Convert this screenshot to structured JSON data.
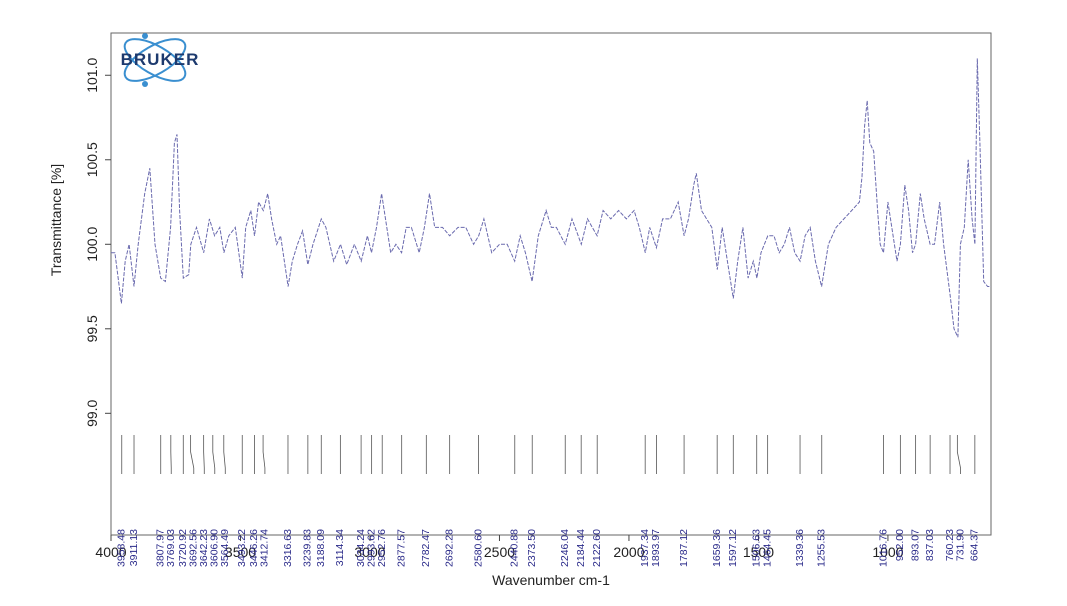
{
  "logo": "BRUKER",
  "chart_data": {
    "type": "line",
    "x_label": "Wavenumber cm-1",
    "y_label": "Transmittance [%]",
    "xlim": [
      4000,
      602
    ],
    "ylim": [
      98.28,
      101.25
    ],
    "xticks": [
      4000,
      3500,
      3000,
      2500,
      2000,
      1500,
      1000
    ],
    "yticks": [
      {
        "value": 101,
        "label": "101.0"
      },
      100.5,
      {
        "value": 100,
        "label": "100.0"
      },
      99.5,
      {
        "value": 99,
        "label": "99.0"
      }
    ],
    "color": "#6a6aae",
    "x": [
      4000,
      3985,
      3960,
      3945,
      3930,
      3911,
      3895,
      3870,
      3850,
      3830,
      3808,
      3790,
      3770,
      3755,
      3745,
      3735,
      3721,
      3700,
      3692,
      3670,
      3642,
      3620,
      3600,
      3580,
      3564,
      3545,
      3520,
      3493,
      3480,
      3460,
      3446,
      3430,
      3412,
      3395,
      3380,
      3360,
      3345,
      3316,
      3300,
      3280,
      3260,
      3240,
      3220,
      3188,
      3170,
      3140,
      3114,
      3090,
      3060,
      3034,
      3010,
      2994,
      2975,
      2955,
      2940,
      2920,
      2900,
      2878,
      2860,
      2840,
      2810,
      2790,
      2770,
      2750,
      2720,
      2692,
      2660,
      2630,
      2600,
      2580,
      2560,
      2530,
      2500,
      2470,
      2441,
      2420,
      2400,
      2374,
      2350,
      2320,
      2300,
      2280,
      2246,
      2220,
      2184,
      2160,
      2123,
      2100,
      2070,
      2040,
      2010,
      1980,
      1960,
      1937,
      1920,
      1894,
      1870,
      1840,
      1810,
      1787,
      1770,
      1750,
      1740,
      1720,
      1700,
      1680,
      1659,
      1640,
      1620,
      1597,
      1580,
      1560,
      1540,
      1520,
      1506,
      1490,
      1464,
      1440,
      1420,
      1400,
      1380,
      1360,
      1339,
      1320,
      1300,
      1280,
      1256,
      1230,
      1200,
      1170,
      1140,
      1110,
      1100,
      1090,
      1080,
      1070,
      1055,
      1040,
      1030,
      1017,
      1000,
      985,
      965,
      952,
      935,
      920,
      905,
      893,
      875,
      860,
      837,
      820,
      800,
      785,
      760,
      745,
      730,
      720,
      705,
      690,
      675,
      664,
      655,
      645,
      630,
      615,
      602
    ],
    "values": [
      99.95,
      99.95,
      99.65,
      99.9,
      100.0,
      99.75,
      100.0,
      100.3,
      100.45,
      100.0,
      99.8,
      99.78,
      100.1,
      100.6,
      100.65,
      100.2,
      99.8,
      99.82,
      100.0,
      100.1,
      99.95,
      100.15,
      100.05,
      100.1,
      99.95,
      100.05,
      100.1,
      99.8,
      100.1,
      100.2,
      100.05,
      100.25,
      100.2,
      100.3,
      100.15,
      100.0,
      100.05,
      99.75,
      99.9,
      100.0,
      100.08,
      99.88,
      100.0,
      100.15,
      100.1,
      99.9,
      100.0,
      99.88,
      100.0,
      99.9,
      100.05,
      99.95,
      100.1,
      100.3,
      100.15,
      99.95,
      100.0,
      99.95,
      100.1,
      100.1,
      99.95,
      100.1,
      100.3,
      100.1,
      100.1,
      100.05,
      100.1,
      100.1,
      100.0,
      100.05,
      100.15,
      99.95,
      100.0,
      100.0,
      99.9,
      100.05,
      99.95,
      99.78,
      100.05,
      100.2,
      100.1,
      100.1,
      100.0,
      100.15,
      100.0,
      100.15,
      100.05,
      100.2,
      100.15,
      100.2,
      100.15,
      100.2,
      100.1,
      99.95,
      100.1,
      99.98,
      100.15,
      100.15,
      100.25,
      100.05,
      100.15,
      100.35,
      100.42,
      100.2,
      100.15,
      100.1,
      99.85,
      100.1,
      99.9,
      99.68,
      99.9,
      100.1,
      99.8,
      99.9,
      99.8,
      99.95,
      100.05,
      100.05,
      99.95,
      100.0,
      100.1,
      99.95,
      99.9,
      100.05,
      100.1,
      99.9,
      99.75,
      100.0,
      100.1,
      100.15,
      100.2,
      100.25,
      100.4,
      100.7,
      100.85,
      100.6,
      100.55,
      100.2,
      100.0,
      99.95,
      100.25,
      100.1,
      99.9,
      100.0,
      100.35,
      100.2,
      99.95,
      100.0,
      100.3,
      100.15,
      100.0,
      100.0,
      100.25,
      100.0,
      99.7,
      99.5,
      99.45,
      100.0,
      100.1,
      100.5,
      100.15,
      100.0,
      101.1,
      100.6,
      99.78,
      99.75,
      99.75
    ],
    "peaks": [
      3958.48,
      3911.13,
      3807.97,
      3769.03,
      3720.92,
      3692.56,
      3642.23,
      {
        "value": 3606.9,
        "label": "3606.90"
      },
      3564.49,
      3493.22,
      3446.26,
      3412.74,
      3316.63,
      3239.83,
      3188.09,
      3114.34,
      3034.24,
      2993.62,
      2952.76,
      2877.57,
      2782.47,
      2692.28,
      {
        "value": 2580.6,
        "label": "2580.60"
      },
      2440.88,
      {
        "value": 2373.5,
        "label": "2373.50"
      },
      2246.04,
      2184.44,
      {
        "value": 2122.6,
        "label": "2122.60"
      },
      1937.34,
      1893.97,
      1787.12,
      1659.36,
      1597.12,
      1506.63,
      1464.45,
      1339.36,
      1255.53,
      1016.76,
      {
        "value": 952,
        "label": "952.00"
      },
      893.07,
      837.03,
      760.23,
      {
        "value": 731.9,
        "label": "731.90"
      },
      664.37
    ]
  }
}
